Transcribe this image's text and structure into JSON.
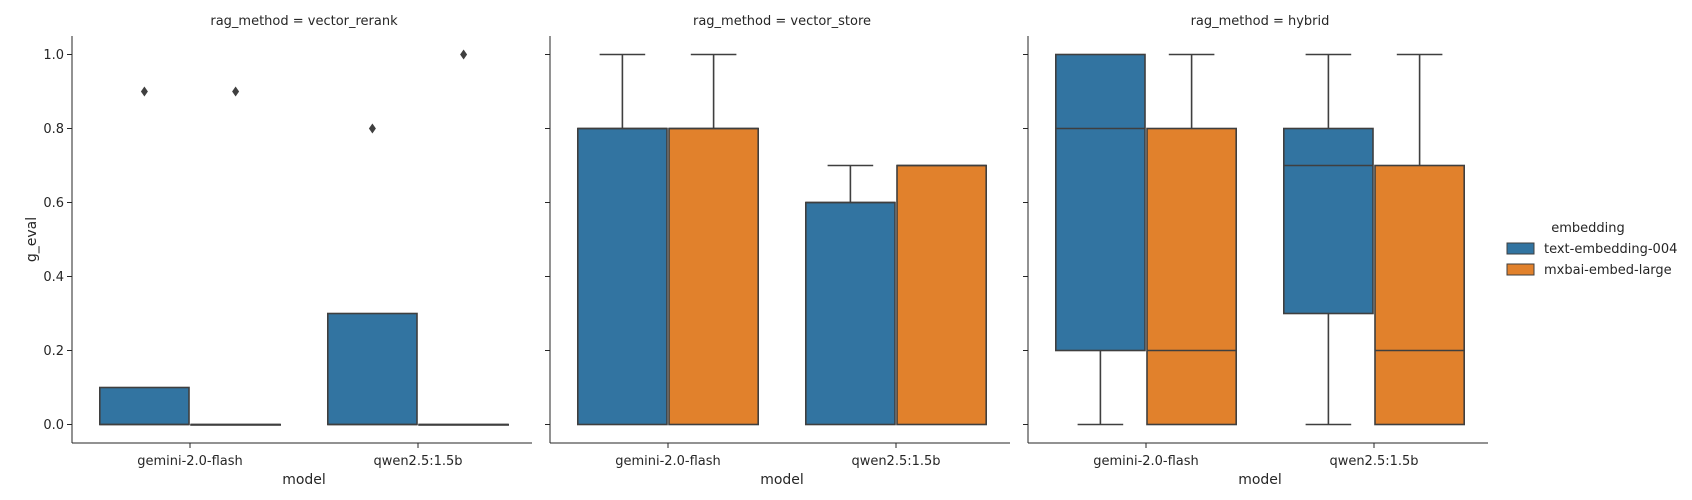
{
  "chart_data": {
    "type": "box",
    "facet_variable": "rag_method",
    "xlabel": "model",
    "ylabel": "g_eval",
    "ylim": [
      -0.05,
      1.05
    ],
    "yticks": [
      0.0,
      0.2,
      0.4,
      0.6,
      0.8,
      1.0
    ],
    "ytick_labels": [
      "0.0",
      "0.2",
      "0.4",
      "0.6",
      "0.8",
      "1.0"
    ],
    "categories": [
      "gemini-2.0-flash",
      "qwen2.5:1.5b"
    ],
    "legend": {
      "title": "embedding",
      "placement": "right",
      "entries": [
        {
          "name": "text-embedding-004",
          "color": "#3274a1"
        },
        {
          "name": "mxbai-embed-large",
          "color": "#e1812c"
        }
      ]
    },
    "facets": [
      {
        "title": "rag_method = vector_rerank",
        "boxes": [
          {
            "model": "gemini-2.0-flash",
            "embedding": "text-embedding-004",
            "whisker_low": 0.0,
            "q1": 0.0,
            "median": 0.0,
            "q3": 0.1,
            "whisker_high": 0.1,
            "outliers": [
              0.9
            ]
          },
          {
            "model": "gemini-2.0-flash",
            "embedding": "mxbai-embed-large",
            "whisker_low": 0.0,
            "q1": 0.0,
            "median": 0.0,
            "q3": 0.0,
            "whisker_high": 0.0,
            "outliers": [
              0.9
            ]
          },
          {
            "model": "qwen2.5:1.5b",
            "embedding": "text-embedding-004",
            "whisker_low": 0.0,
            "q1": 0.0,
            "median": 0.0,
            "q3": 0.3,
            "whisker_high": 0.3,
            "outliers": [
              0.8
            ]
          },
          {
            "model": "qwen2.5:1.5b",
            "embedding": "mxbai-embed-large",
            "whisker_low": 0.0,
            "q1": 0.0,
            "median": 0.0,
            "q3": 0.0,
            "whisker_high": 0.0,
            "outliers": [
              1.0
            ]
          }
        ]
      },
      {
        "title": "rag_method = vector_store",
        "boxes": [
          {
            "model": "gemini-2.0-flash",
            "embedding": "text-embedding-004",
            "whisker_low": 0.0,
            "q1": 0.0,
            "median": 0.8,
            "q3": 0.8,
            "whisker_high": 1.0,
            "outliers": []
          },
          {
            "model": "gemini-2.0-flash",
            "embedding": "mxbai-embed-large",
            "whisker_low": 0.0,
            "q1": 0.0,
            "median": 0.8,
            "q3": 0.8,
            "whisker_high": 1.0,
            "outliers": []
          },
          {
            "model": "qwen2.5:1.5b",
            "embedding": "text-embedding-004",
            "whisker_low": 0.0,
            "q1": 0.0,
            "median": 0.6,
            "q3": 0.6,
            "whisker_high": 0.7,
            "outliers": []
          },
          {
            "model": "qwen2.5:1.5b",
            "embedding": "mxbai-embed-large",
            "whisker_low": 0.0,
            "q1": 0.0,
            "median": 0.7,
            "q3": 0.7,
            "whisker_high": 0.7,
            "outliers": []
          }
        ]
      },
      {
        "title": "rag_method = hybrid",
        "boxes": [
          {
            "model": "gemini-2.0-flash",
            "embedding": "text-embedding-004",
            "whisker_low": 0.0,
            "q1": 0.2,
            "median": 0.8,
            "q3": 1.0,
            "whisker_high": 1.0,
            "outliers": []
          },
          {
            "model": "gemini-2.0-flash",
            "embedding": "mxbai-embed-large",
            "whisker_low": 0.0,
            "q1": 0.0,
            "median": 0.2,
            "q3": 0.8,
            "whisker_high": 1.0,
            "outliers": []
          },
          {
            "model": "qwen2.5:1.5b",
            "embedding": "text-embedding-004",
            "whisker_low": 0.0,
            "q1": 0.3,
            "median": 0.7,
            "q3": 0.8,
            "whisker_high": 1.0,
            "outliers": []
          },
          {
            "model": "qwen2.5:1.5b",
            "embedding": "mxbai-embed-large",
            "whisker_low": 0.0,
            "q1": 0.0,
            "median": 0.2,
            "q3": 0.7,
            "whisker_high": 1.0,
            "outliers": []
          }
        ]
      }
    ]
  }
}
